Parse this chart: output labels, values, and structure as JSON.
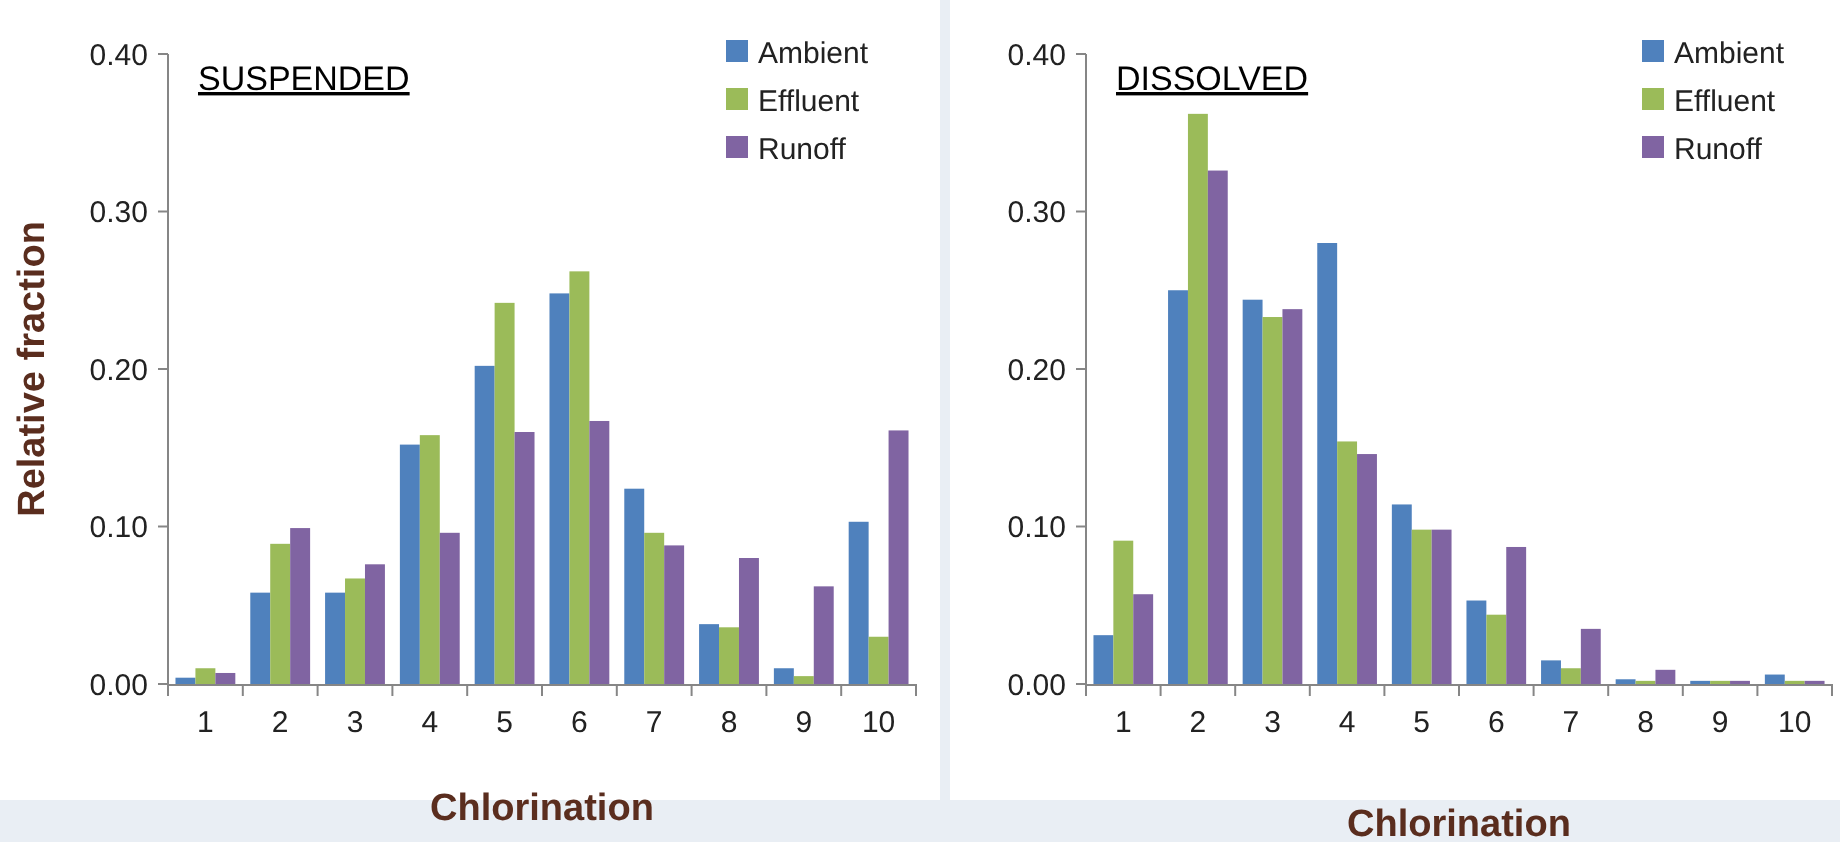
{
  "chart_data": [
    {
      "type": "bar",
      "title": "SUSPENDED",
      "xlabel": "Chlorination",
      "ylabel": "Relative fraction",
      "categories": [
        "1",
        "2",
        "3",
        "4",
        "5",
        "6",
        "7",
        "8",
        "9",
        "10"
      ],
      "ylim": [
        0,
        0.4
      ],
      "yticks": [
        {
          "value": 0,
          "label": "0.00"
        },
        {
          "value": 0.1,
          "label": "0.10"
        },
        {
          "value": 0.2,
          "label": "0.20"
        },
        {
          "value": 0.3,
          "label": "0.30"
        },
        {
          "value": 0.4,
          "label": "0.40"
        }
      ],
      "grid": false,
      "legend": "top right",
      "series": [
        {
          "name": "Ambient",
          "color": "#4f81bd",
          "values": [
            0.004,
            0.058,
            0.058,
            0.152,
            0.202,
            0.248,
            0.124,
            0.038,
            0.01,
            0.103
          ]
        },
        {
          "name": "Effluent",
          "color": "#9bbb59",
          "values": [
            0.01,
            0.089,
            0.067,
            0.158,
            0.242,
            0.262,
            0.096,
            0.036,
            0.005,
            0.03
          ]
        },
        {
          "name": "Runoff",
          "color": "#8064a2",
          "values": [
            0.007,
            0.099,
            0.076,
            0.096,
            0.16,
            0.167,
            0.088,
            0.08,
            0.062,
            0.161
          ]
        }
      ]
    },
    {
      "type": "bar",
      "title": "DISSOLVED",
      "xlabel": "Chlorination",
      "categories": [
        "1",
        "2",
        "3",
        "4",
        "5",
        "6",
        "7",
        "8",
        "9",
        "10"
      ],
      "ylim": [
        0,
        0.4
      ],
      "yticks": [
        {
          "value": 0,
          "label": "0.00"
        },
        {
          "value": 0.1,
          "label": "0.10"
        },
        {
          "value": 0.2,
          "label": "0.20"
        },
        {
          "value": 0.3,
          "label": "0.30"
        },
        {
          "value": 0.4,
          "label": "0.40"
        }
      ],
      "grid": false,
      "legend": "top right",
      "series": [
        {
          "name": "Ambient",
          "color": "#4f81bd",
          "values": [
            0.031,
            0.25,
            0.244,
            0.28,
            0.114,
            0.053,
            0.015,
            0.003,
            0.002,
            0.006
          ]
        },
        {
          "name": "Effluent",
          "color": "#9bbb59",
          "values": [
            0.091,
            0.362,
            0.233,
            0.154,
            0.098,
            0.044,
            0.01,
            0.002,
            0.002,
            0.002
          ]
        },
        {
          "name": "Runoff",
          "color": "#8064a2",
          "values": [
            0.057,
            0.326,
            0.238,
            0.146,
            0.098,
            0.087,
            0.035,
            0.009,
            0.002,
            0.002
          ]
        }
      ]
    }
  ]
}
